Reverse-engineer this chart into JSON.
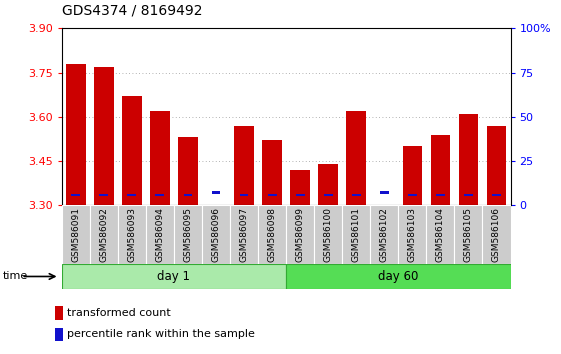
{
  "title": "GDS4374 / 8169492",
  "samples": [
    "GSM586091",
    "GSM586092",
    "GSM586093",
    "GSM586094",
    "GSM586095",
    "GSM586096",
    "GSM586097",
    "GSM586098",
    "GSM586099",
    "GSM586100",
    "GSM586101",
    "GSM586102",
    "GSM586103",
    "GSM586104",
    "GSM586105",
    "GSM586106"
  ],
  "red_values": [
    3.78,
    3.77,
    3.67,
    3.62,
    3.53,
    3.3,
    3.57,
    3.52,
    3.42,
    3.44,
    3.62,
    3.3,
    3.5,
    3.54,
    3.61,
    3.57
  ],
  "blue_values": [
    3.336,
    3.336,
    3.336,
    3.336,
    3.336,
    3.344,
    3.336,
    3.336,
    3.336,
    3.336,
    3.336,
    3.344,
    3.336,
    3.336,
    3.336,
    3.336
  ],
  "ymin": 3.3,
  "ymax": 3.9,
  "yticks_left": [
    3.3,
    3.45,
    3.6,
    3.75,
    3.9
  ],
  "yticks_right_pos": [
    3.3,
    3.45,
    3.6,
    3.75,
    3.9
  ],
  "yticks_right_labels": [
    "0",
    "25",
    "50",
    "75",
    "100%"
  ],
  "day1_count": 8,
  "day60_count": 8,
  "bar_width": 0.7,
  "red_color": "#cc0000",
  "blue_color": "#1111cc",
  "day1_color": "#aaeaaa",
  "day60_color": "#55dd55",
  "grid_color": "#999999",
  "title_fontsize": 10,
  "axis_label_fontsize": 8,
  "legend_fontsize": 8,
  "time_label": "time",
  "day1_label": "day 1",
  "day60_label": "day 60",
  "legend_red": "transformed count",
  "legend_blue": "percentile rank within the sample"
}
